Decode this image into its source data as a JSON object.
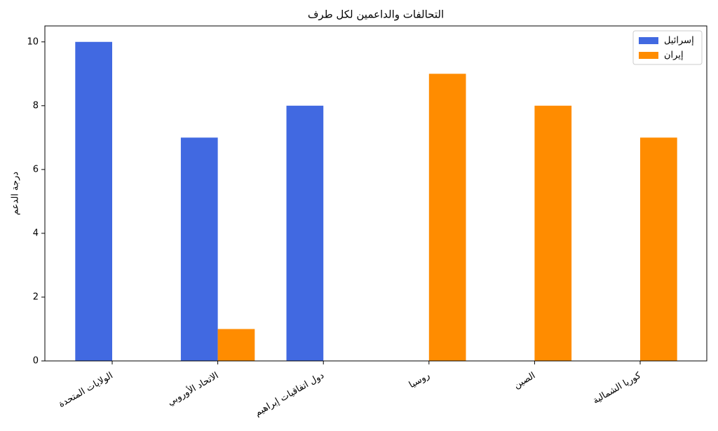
{
  "chart_data": {
    "type": "bar",
    "title": "التحالفات والداعمين لكل طرف",
    "y_label": "درجة الدعم",
    "categories": [
      "الولايات المتحدة",
      "الاتحاد الأوروبي",
      "دول اتفاقيات إبراهيم",
      "روسيا",
      "الصين",
      "كوريا الشمالية"
    ],
    "series": [
      {
        "name": "إسرائيل",
        "color": "#4169e1",
        "values": [
          10,
          7,
          8,
          0,
          0,
          0
        ]
      },
      {
        "name": "إيران",
        "color": "#ff8c00",
        "values": [
          0,
          1,
          0,
          9,
          8,
          7
        ]
      }
    ],
    "ylim": [
      0,
      10.5
    ],
    "yticks": [
      0,
      2,
      4,
      6,
      8,
      10
    ],
    "grid": false,
    "legend": "upper-right"
  }
}
